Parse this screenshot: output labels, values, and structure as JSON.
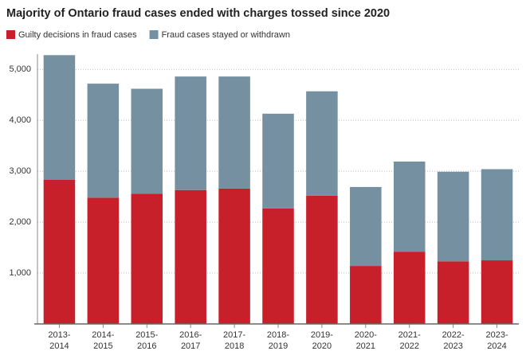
{
  "chart_data": {
    "type": "stacked-bar",
    "title": "Majority of Ontario fraud cases ended with charges tossed since 2020",
    "categories": [
      "2013-\n2014",
      "2014-\n2015",
      "2015-\n2016",
      "2016-\n2017",
      "2017-\n2018",
      "2018-\n2019",
      "2019-\n2020",
      "2020-\n2021",
      "2021-\n2022",
      "2022-\n2023",
      "2023-\n2024"
    ],
    "series": [
      {
        "name": "Guilty decisions in fraud cases",
        "color": "#c8202b",
        "values": [
          2830,
          2480,
          2560,
          2630,
          2660,
          2270,
          2520,
          1140,
          1420,
          1230,
          1250
        ]
      },
      {
        "name": "Fraud cases stayed or withdrawn",
        "color": "#7590a0",
        "values": [
          2450,
          2240,
          2060,
          2230,
          2200,
          1860,
          2050,
          1550,
          1770,
          1760,
          1790
        ]
      }
    ],
    "ylim": [
      0,
      5300
    ],
    "yticks": [
      {
        "value": 1000,
        "label": "1,000"
      },
      {
        "value": 2000,
        "label": "2,000"
      },
      {
        "value": 3000,
        "label": "3,000"
      },
      {
        "value": 4000,
        "label": "4,000"
      },
      {
        "value": 5000,
        "label": "5,000"
      }
    ],
    "grid": true
  }
}
